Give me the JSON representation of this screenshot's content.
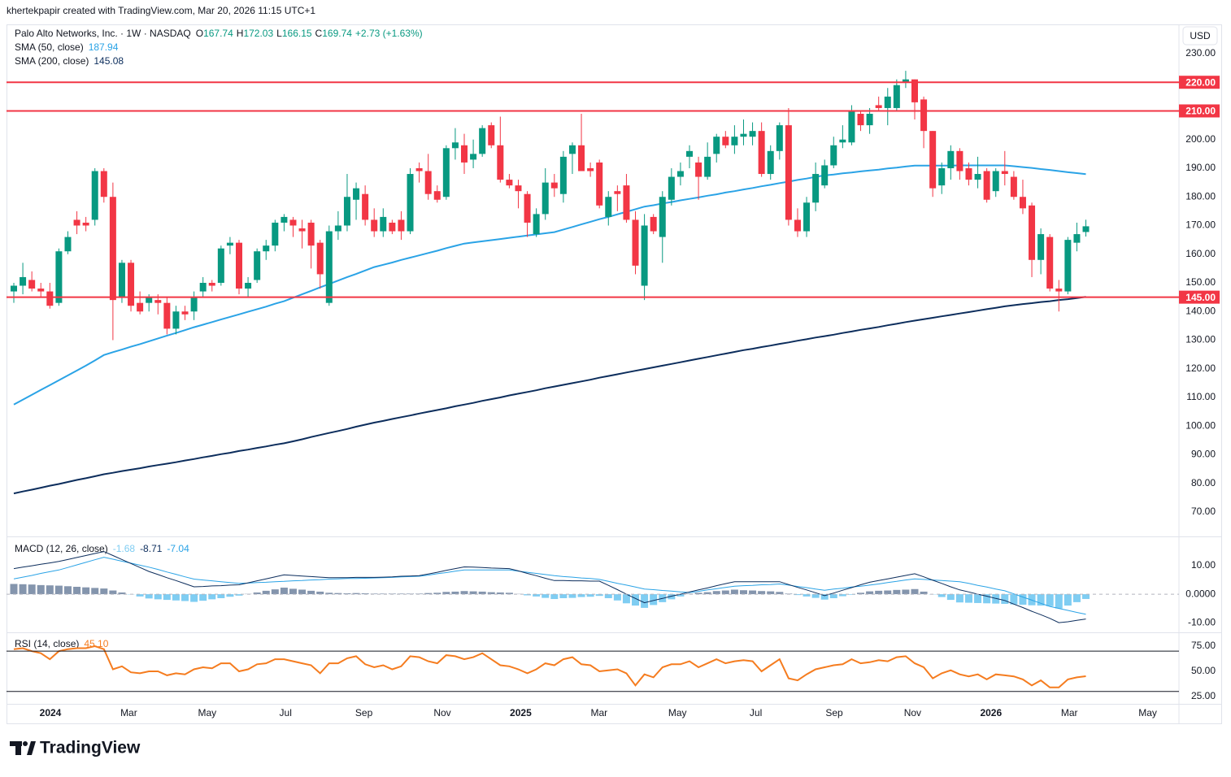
{
  "chart_data": {
    "type": "candlestick",
    "attribution": "khertekpapir created with TradingView.com, Mar 20, 2026 11:15 UTC+1",
    "title": "Palo Alto Networks, Inc. · 1W · NASDAQ",
    "ohlc_keys": [
      "O",
      "H",
      "L",
      "C"
    ],
    "change": "+2.73 (+1.63%)",
    "currency": "USD",
    "brand": "TradingView",
    "up_color": "#089981",
    "down_color": "#f23645",
    "ylim": [
      61.5,
      240.2
    ],
    "yticks": [
      {
        "value": 230,
        "label": "230.00"
      },
      {
        "value": 200,
        "label": "200.00"
      },
      {
        "value": 190,
        "label": "190.00"
      },
      {
        "value": 180,
        "label": "180.00"
      },
      {
        "value": 170,
        "label": "170.00"
      },
      {
        "value": 160,
        "label": "160.00"
      },
      {
        "value": 150,
        "label": "150.00"
      },
      {
        "value": 140,
        "label": "140.00"
      },
      {
        "value": 130,
        "label": "130.00"
      },
      {
        "value": 120,
        "label": "120.00"
      },
      {
        "value": 110,
        "label": "110.00"
      },
      {
        "value": 100,
        "label": "100.00"
      },
      {
        "value": 90,
        "label": "90.00"
      },
      {
        "value": 80,
        "label": "80.00"
      },
      {
        "value": 70,
        "label": "70.00"
      }
    ],
    "levels": [
      {
        "value": 220,
        "label": "220.00"
      },
      {
        "value": 210,
        "label": "210.00"
      },
      {
        "value": 145,
        "label": "145.00"
      }
    ],
    "level_color": "#f23645",
    "xlabels": [
      "2024",
      "Mar",
      "May",
      "Jul",
      "Sep",
      "Nov",
      "2025",
      "Mar",
      "May",
      "Jul",
      "Sep",
      "Nov",
      "2026",
      "Mar",
      "May"
    ],
    "open": [
      147,
      149,
      151,
      148,
      147,
      143,
      161,
      172,
      171,
      172,
      189,
      180,
      145,
      157,
      143,
      143,
      144,
      143,
      134,
      140,
      140,
      147,
      150,
      150,
      163,
      164,
      148,
      151,
      161,
      163,
      171,
      172,
      169,
      171,
      164,
      143,
      168,
      170,
      179,
      181,
      172,
      168,
      171,
      172,
      168,
      190,
      189,
      182,
      180,
      197,
      198,
      193,
      195,
      205,
      198,
      186,
      184,
      181,
      167,
      174,
      185,
      181,
      195,
      198,
      190,
      192,
      173,
      182,
      184,
      172,
      149,
      173,
      166,
      179,
      187,
      194,
      192,
      187,
      195,
      201,
      198,
      201,
      201,
      203,
      188,
      196,
      205,
      172,
      168,
      178,
      184,
      191,
      199,
      199,
      209,
      205,
      212,
      211,
      211,
      220,
      221,
      214,
      203,
      184,
      190,
      196,
      190,
      186,
      189,
      182,
      189,
      187,
      180,
      177,
      158,
      166,
      148,
      147,
      164,
      167.74
    ],
    "high": [
      150,
      157,
      154,
      150,
      150,
      162,
      168,
      175,
      173,
      190,
      190,
      185,
      158,
      158,
      147,
      146,
      146,
      145,
      142,
      142,
      147,
      152,
      151,
      163,
      166,
      165,
      152,
      162,
      165,
      172,
      174,
      173,
      172,
      172,
      165,
      170,
      175,
      188,
      185,
      184,
      176,
      176,
      172,
      175,
      190,
      192,
      195,
      184,
      198,
      204,
      202,
      200,
      205,
      206,
      208,
      188,
      186,
      182,
      176,
      190,
      188,
      196,
      199,
      209,
      192,
      193,
      182,
      184,
      188,
      175,
      174,
      174,
      182,
      190,
      192,
      198,
      194,
      199,
      202,
      203,
      205,
      207,
      206,
      206,
      198,
      206,
      211,
      176,
      180,
      192,
      193,
      201,
      205,
      212,
      210,
      211,
      215,
      218,
      221,
      224,
      221,
      215,
      203,
      192,
      198,
      197,
      192,
      194,
      190,
      190,
      196,
      189,
      186,
      178,
      169,
      167,
      151,
      166,
      171,
      172.03
    ],
    "low": [
      143,
      146,
      147,
      145,
      141,
      142,
      160,
      167,
      168,
      170,
      178,
      130,
      143,
      140,
      139,
      140,
      139,
      132,
      132,
      137,
      137,
      145,
      147,
      149,
      160,
      146,
      145,
      150,
      158,
      161,
      168,
      166,
      162,
      155,
      148,
      142,
      165,
      168,
      172,
      170,
      166,
      166,
      167,
      165,
      167,
      185,
      179,
      178,
      179,
      193,
      188,
      190,
      194,
      197,
      185,
      183,
      176,
      166,
      166,
      172,
      180,
      178,
      188,
      189,
      187,
      176,
      170,
      175,
      171,
      153,
      144,
      167,
      157,
      177,
      184,
      190,
      179,
      186,
      192,
      197,
      195,
      198,
      198,
      187,
      186,
      193,
      170,
      166,
      166,
      175,
      183,
      190,
      197,
      198,
      203,
      202,
      210,
      205,
      210,
      218,
      207,
      197,
      180,
      181,
      186,
      186,
      184,
      183,
      178,
      180,
      184,
      179,
      174,
      152,
      153,
      147,
      140,
      146,
      161,
      166.15
    ],
    "close": [
      149,
      152,
      148,
      147,
      142,
      161,
      166,
      170,
      170,
      189,
      180,
      144,
      157,
      142,
      140,
      145,
      143,
      134,
      140,
      139,
      145,
      150,
      149,
      162,
      164,
      148,
      150,
      161,
      163,
      171,
      173,
      170,
      168,
      163,
      153,
      168,
      170,
      180,
      183,
      172,
      168,
      173,
      168,
      168,
      188,
      189,
      181,
      179,
      197,
      199,
      192,
      195,
      204,
      198,
      186,
      184,
      182,
      171,
      174,
      185,
      183,
      194,
      198,
      189,
      189,
      177,
      180,
      181,
      172,
      156,
      170,
      168,
      180,
      187,
      189,
      196,
      187,
      194,
      201,
      198,
      201,
      202,
      203,
      188,
      196,
      205,
      172,
      168,
      178,
      188,
      191,
      198,
      200,
      210,
      205,
      209,
      211,
      215,
      219,
      221,
      213,
      203,
      183,
      190,
      196,
      189,
      186,
      188,
      179,
      189,
      188,
      180,
      176,
      158,
      167,
      148,
      147,
      165,
      167,
      169.74
    ],
    "sma": [
      {
        "name": "SMA (50, close)",
        "color": "#2aa3e6",
        "values": [
          107.5,
          109.2,
          110.9,
          112.6,
          114.3,
          116.0,
          117.7,
          119.4,
          121.1,
          122.9,
          124.8,
          125.8,
          126.7,
          127.7,
          128.6,
          129.6,
          130.6,
          131.6,
          132.5,
          133.5,
          134.5,
          135.4,
          136.3,
          137.2,
          138.1,
          139.0,
          139.9,
          140.8,
          141.7,
          142.7,
          143.6,
          144.8,
          146.0,
          147.2,
          148.4,
          149.6,
          150.8,
          152.0,
          153.1,
          154.3,
          155.5,
          156.3,
          157.1,
          158.0,
          158.8,
          159.6,
          160.4,
          161.2,
          162.1,
          162.9,
          163.7,
          164.1,
          164.5,
          164.9,
          165.3,
          165.7,
          166.1,
          166.5,
          166.9,
          167.3,
          167.7,
          168.6,
          169.5,
          170.4,
          171.3,
          172.2,
          173.0,
          173.9,
          174.8,
          175.7,
          176.6,
          177.1,
          177.7,
          178.2,
          178.8,
          179.3,
          179.8,
          180.4,
          180.9,
          181.5,
          182.0,
          182.6,
          183.1,
          183.7,
          184.2,
          184.8,
          185.3,
          185.9,
          186.4,
          187.0,
          187.5,
          187.8,
          188.2,
          188.5,
          188.9,
          189.2,
          189.5,
          189.9,
          190.2,
          190.6,
          190.9,
          190.9,
          190.9,
          190.9,
          190.9,
          191.0,
          191.0,
          191.0,
          191.0,
          191.0,
          191.0,
          190.7,
          190.4,
          190.1,
          189.7,
          189.4,
          189.0,
          188.6,
          188.3,
          187.94
        ]
      },
      {
        "name": "SMA (200, close)",
        "color": "#0c2d5c",
        "values": [
          76.5,
          77.2,
          77.8,
          78.5,
          79.2,
          79.8,
          80.5,
          81.2,
          81.8,
          82.5,
          83.2,
          83.7,
          84.3,
          84.8,
          85.3,
          85.9,
          86.4,
          86.9,
          87.4,
          88.0,
          88.5,
          89.1,
          89.6,
          90.2,
          90.7,
          91.3,
          91.8,
          92.4,
          92.9,
          93.5,
          94.0,
          94.7,
          95.4,
          96.2,
          96.9,
          97.6,
          98.3,
          99.0,
          99.8,
          100.5,
          101.2,
          101.8,
          102.5,
          103.1,
          103.7,
          104.4,
          105.0,
          105.6,
          106.2,
          106.9,
          107.5,
          108.1,
          108.8,
          109.4,
          110.0,
          110.7,
          111.3,
          111.9,
          112.5,
          113.2,
          113.8,
          114.4,
          115.0,
          115.6,
          116.2,
          116.9,
          117.5,
          118.1,
          118.7,
          119.3,
          119.9,
          120.5,
          121.1,
          121.7,
          122.3,
          122.9,
          123.5,
          124.1,
          124.7,
          125.3,
          125.9,
          126.5,
          127.0,
          127.6,
          128.1,
          128.7,
          129.2,
          129.8,
          130.3,
          130.9,
          131.4,
          131.9,
          132.5,
          133.0,
          133.6,
          134.1,
          134.6,
          135.2,
          135.7,
          136.3,
          136.8,
          137.3,
          137.8,
          138.3,
          138.8,
          139.3,
          139.8,
          140.3,
          140.8,
          141.3,
          141.8,
          142.2,
          142.6,
          142.9,
          143.3,
          143.6,
          144.0,
          144.3,
          144.7,
          145.08
        ]
      }
    ],
    "macd": {
      "title": "MACD (12, 26, close)",
      "ylim": [
        -13.4,
        20.3
      ],
      "yticks": [
        {
          "value": 10,
          "label": "10.00"
        },
        {
          "value": 0,
          "label": "0.0000"
        },
        {
          "value": -10,
          "label": "-10.00"
        }
      ],
      "histogram": {
        "up_color": "#8495ad",
        "down_color": "#7fcdf2",
        "values": [
          3.6,
          3.5,
          3.4,
          3.2,
          3.1,
          3.0,
          2.8,
          2.6,
          2.4,
          2.2,
          2.0,
          1.3,
          0.6,
          -0.1,
          -0.8,
          -1.5,
          -1.8,
          -2.0,
          -2.2,
          -2.4,
          -2.7,
          -2.3,
          -1.8,
          -1.4,
          -0.9,
          -0.5,
          0.1,
          0.6,
          1.2,
          1.7,
          2.3,
          1.9,
          1.6,
          1.2,
          0.9,
          0.5,
          0.4,
          0.3,
          0.4,
          0.3,
          0.2,
          0.2,
          0.2,
          0.2,
          0.2,
          0.2,
          0.4,
          0.5,
          0.8,
          0.9,
          1.1,
          1.0,
          0.9,
          0.7,
          0.6,
          0.5,
          0.1,
          -0.4,
          -0.8,
          -1.3,
          -1.7,
          -1.4,
          -1.3,
          -1.0,
          -0.9,
          -0.6,
          -1.4,
          -2.2,
          -3.2,
          -4.0,
          -4.8,
          -3.8,
          -2.8,
          -1.8,
          -0.8,
          0.2,
          0.5,
          0.7,
          1.1,
          1.3,
          1.6,
          1.4,
          1.3,
          1.1,
          1.0,
          0.8,
          0.2,
          -0.3,
          -0.8,
          -1.3,
          -1.9,
          -1.4,
          -0.7,
          -0.2,
          0.5,
          1.0,
          1.2,
          1.3,
          1.5,
          1.6,
          1.8,
          0.9,
          -0.1,
          -1.0,
          -2.0,
          -2.9,
          -3.0,
          -3.1,
          -3.2,
          -3.3,
          -3.4,
          -3.6,
          -3.7,
          -3.9,
          -4.0,
          -4.2,
          -5.0,
          -4.0,
          -2.8,
          -1.68
        ]
      },
      "macd": {
        "color": "#0c2d5c",
        "values": [
          9.0,
          9.5,
          10.0,
          10.5,
          11.0,
          11.5,
          12.2,
          12.9,
          13.6,
          14.3,
          15.0,
          13.6,
          12.2,
          10.8,
          9.4,
          8.0,
          6.9,
          5.8,
          4.8,
          3.7,
          2.6,
          2.7,
          2.9,
          3.0,
          3.2,
          3.3,
          4.0,
          4.7,
          5.4,
          6.1,
          6.8,
          6.6,
          6.4,
          6.2,
          6.0,
          5.8,
          5.8,
          5.8,
          5.9,
          5.9,
          5.9,
          6.0,
          6.1,
          6.3,
          6.4,
          6.5,
          7.1,
          7.7,
          8.4,
          9.0,
          9.6,
          9.5,
          9.4,
          9.2,
          9.1,
          9.0,
          8.2,
          7.3,
          6.5,
          5.6,
          4.8,
          4.8,
          4.7,
          4.7,
          4.6,
          4.6,
          3.1,
          1.6,
          0.0,
          -1.5,
          -3.0,
          -2.2,
          -1.5,
          -0.7,
          0.0,
          0.8,
          1.5,
          2.2,
          3.0,
          3.7,
          4.4,
          4.4,
          4.4,
          4.4,
          4.4,
          4.4,
          3.4,
          2.4,
          1.5,
          0.5,
          -0.5,
          0.4,
          1.4,
          2.3,
          3.3,
          4.2,
          4.8,
          5.4,
          6.0,
          6.6,
          7.2,
          6.1,
          4.9,
          3.8,
          2.6,
          1.5,
          0.8,
          0.0,
          -0.7,
          -1.5,
          -2.2,
          -3.5,
          -4.7,
          -6.0,
          -7.2,
          -8.5,
          -10.0,
          -9.7,
          -9.2,
          -8.71
        ]
      },
      "signal": {
        "color": "#2aa3e6",
        "values": [
          5.4,
          6.0,
          6.6,
          7.3,
          7.9,
          8.5,
          9.4,
          10.3,
          11.2,
          12.1,
          13.0,
          12.3,
          11.6,
          10.9,
          10.2,
          9.5,
          8.7,
          7.8,
          7.0,
          6.1,
          5.3,
          5.0,
          4.7,
          4.4,
          4.1,
          3.8,
          3.9,
          4.1,
          4.2,
          4.4,
          4.5,
          4.7,
          4.8,
          5.0,
          5.1,
          5.3,
          5.4,
          5.5,
          5.5,
          5.6,
          5.7,
          5.8,
          5.9,
          6.1,
          6.2,
          6.3,
          6.7,
          7.2,
          7.6,
          8.1,
          8.5,
          8.5,
          8.5,
          8.5,
          8.5,
          8.5,
          8.1,
          7.7,
          7.3,
          6.9,
          6.5,
          6.2,
          6.0,
          5.7,
          5.5,
          5.2,
          4.5,
          3.8,
          3.2,
          2.5,
          1.8,
          1.6,
          1.3,
          1.1,
          0.8,
          0.6,
          1.0,
          1.5,
          1.9,
          2.4,
          2.8,
          3.0,
          3.1,
          3.3,
          3.4,
          3.6,
          3.2,
          2.7,
          2.3,
          1.8,
          1.4,
          1.8,
          2.1,
          2.5,
          2.8,
          3.2,
          3.6,
          4.1,
          4.5,
          5.0,
          5.4,
          5.2,
          5.0,
          4.8,
          4.6,
          4.4,
          3.8,
          3.1,
          2.5,
          1.8,
          1.2,
          0.1,
          -1.0,
          -2.1,
          -3.2,
          -4.3,
          -5.0,
          -5.7,
          -6.4,
          -7.04
        ]
      }
    },
    "rsi": {
      "title": "RSI (14, close)",
      "color": "#f57c1f",
      "ylim": [
        17.7,
        88.7
      ],
      "yticks": [
        {
          "value": 75,
          "label": "75.00"
        },
        {
          "value": 50,
          "label": "50.00"
        },
        {
          "value": 25,
          "label": "25.00"
        }
      ],
      "bands": [
        70,
        30
      ],
      "last": {
        "value": 45.1,
        "label": "45.10"
      },
      "values": [
        72,
        73,
        70,
        68,
        62,
        70,
        72,
        73,
        73,
        75,
        72,
        52,
        55,
        49,
        48,
        50,
        50,
        46,
        48,
        47,
        52,
        54,
        53,
        58,
        58,
        50,
        52,
        57,
        58,
        62,
        62,
        60,
        58,
        56,
        48,
        58,
        58,
        63,
        65,
        57,
        54,
        56,
        52,
        55,
        65,
        64,
        60,
        58,
        66,
        65,
        62,
        64,
        68,
        62,
        56,
        55,
        52,
        48,
        52,
        58,
        56,
        62,
        64,
        57,
        56,
        50,
        51,
        52,
        48,
        36,
        47,
        44,
        54,
        57,
        57,
        60,
        54,
        58,
        62,
        58,
        60,
        61,
        60,
        50,
        56,
        62,
        43,
        41,
        47,
        52,
        54,
        56,
        57,
        62,
        58,
        59,
        61,
        60,
        64,
        65,
        58,
        54,
        43,
        48,
        51,
        47,
        45,
        47,
        42,
        47,
        46,
        45,
        42,
        36,
        41,
        34,
        34,
        42,
        44,
        45.1
      ]
    }
  }
}
